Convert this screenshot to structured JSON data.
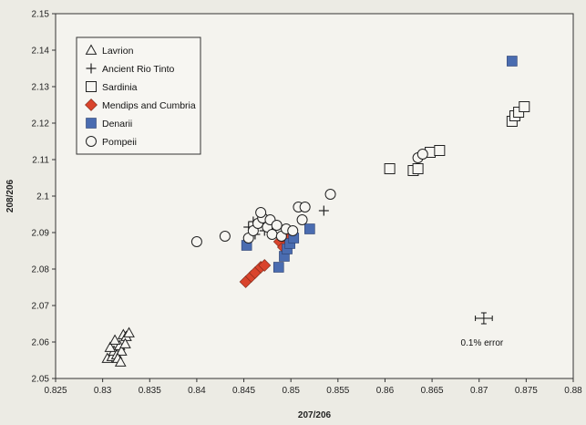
{
  "chart_data": {
    "type": "scatter",
    "xlabel": "207/206",
    "ylabel": "208/206",
    "xlim": [
      0.825,
      0.88
    ],
    "ylim": [
      2.05,
      2.15
    ],
    "x_ticks": [
      "0.825",
      "0.83",
      "0.835",
      "0.84",
      "0.845",
      "0.85",
      "0.855",
      "0.86",
      "0.865",
      "0.87",
      "0.875",
      "0.88"
    ],
    "y_ticks": [
      "2.05",
      "2.06",
      "2.07",
      "2.08",
      "2.09",
      "2.1",
      "2.11",
      "2.12",
      "2.13",
      "2.14",
      "2.15"
    ],
    "grid": false,
    "legend_position": "top-left",
    "series": [
      {
        "name": "Lavrion",
        "marker": "triangle-open",
        "color": "#222222",
        "points": [
          [
            0.8305,
            2.0555
          ],
          [
            0.831,
            2.056
          ],
          [
            0.8312,
            2.0575
          ],
          [
            0.8315,
            2.0565
          ],
          [
            0.8318,
            2.059
          ],
          [
            0.832,
            2.0575
          ],
          [
            0.8322,
            2.062
          ],
          [
            0.8325,
            2.0615
          ],
          [
            0.8328,
            2.0625
          ],
          [
            0.8308,
            2.0585
          ],
          [
            0.8316,
            2.0555
          ],
          [
            0.8324,
            2.0595
          ],
          [
            0.8313,
            2.0605
          ],
          [
            0.8319,
            2.0545
          ]
        ]
      },
      {
        "name": "Ancient Rio Tinto",
        "marker": "plus",
        "color": "#222222",
        "points": [
          [
            0.8455,
            2.0915
          ],
          [
            0.8462,
            2.0895
          ],
          [
            0.846,
            2.093
          ],
          [
            0.8472,
            2.0905
          ],
          [
            0.8535,
            2.096
          ]
        ]
      },
      {
        "name": "Sardinia",
        "marker": "square-open",
        "color": "#222222",
        "points": [
          [
            0.8605,
            2.1075
          ],
          [
            0.863,
            2.107
          ],
          [
            0.8635,
            2.1075
          ],
          [
            0.8648,
            2.112
          ],
          [
            0.8658,
            2.1125
          ],
          [
            0.8735,
            2.1205
          ],
          [
            0.8738,
            2.122
          ],
          [
            0.8742,
            2.123
          ],
          [
            0.8748,
            2.1245
          ]
        ]
      },
      {
        "name": "Mendips and Cumbria",
        "marker": "diamond-filled",
        "color": "#d9442c",
        "points": [
          [
            0.8452,
            2.0765
          ],
          [
            0.8458,
            2.078
          ],
          [
            0.8462,
            2.079
          ],
          [
            0.8468,
            2.0805
          ],
          [
            0.8472,
            2.081
          ],
          [
            0.8488,
            2.0875
          ],
          [
            0.8495,
            2.089
          ],
          [
            0.8492,
            2.086
          ]
        ]
      },
      {
        "name": "Denarii",
        "marker": "square-filled",
        "color": "#4a6cb0",
        "points": [
          [
            0.8453,
            2.0865
          ],
          [
            0.8487,
            2.0805
          ],
          [
            0.8493,
            2.0835
          ],
          [
            0.8496,
            2.0855
          ],
          [
            0.8499,
            2.087
          ],
          [
            0.8503,
            2.0885
          ],
          [
            0.852,
            2.091
          ],
          [
            0.8735,
            2.137
          ]
        ]
      },
      {
        "name": "Pompeii",
        "marker": "circle-open",
        "color": "#222222",
        "points": [
          [
            0.84,
            2.0875
          ],
          [
            0.843,
            2.089
          ],
          [
            0.8455,
            2.0885
          ],
          [
            0.846,
            2.0905
          ],
          [
            0.8465,
            2.0925
          ],
          [
            0.847,
            2.094
          ],
          [
            0.8475,
            2.0915
          ],
          [
            0.848,
            2.0895
          ],
          [
            0.8468,
            2.0955
          ],
          [
            0.8478,
            2.0935
          ],
          [
            0.8485,
            2.092
          ],
          [
            0.849,
            2.089
          ],
          [
            0.8495,
            2.091
          ],
          [
            0.8502,
            2.0905
          ],
          [
            0.8508,
            2.097
          ],
          [
            0.8515,
            2.097
          ],
          [
            0.8512,
            2.0935
          ],
          [
            0.8542,
            2.1005
          ],
          [
            0.8635,
            2.1105
          ],
          [
            0.864,
            2.1115
          ]
        ]
      }
    ],
    "annotations": [
      {
        "text": "0.1% error",
        "x": 0.8705,
        "y": 2.0665,
        "error_x": 0.0009,
        "error_y": 0.0015
      }
    ]
  }
}
